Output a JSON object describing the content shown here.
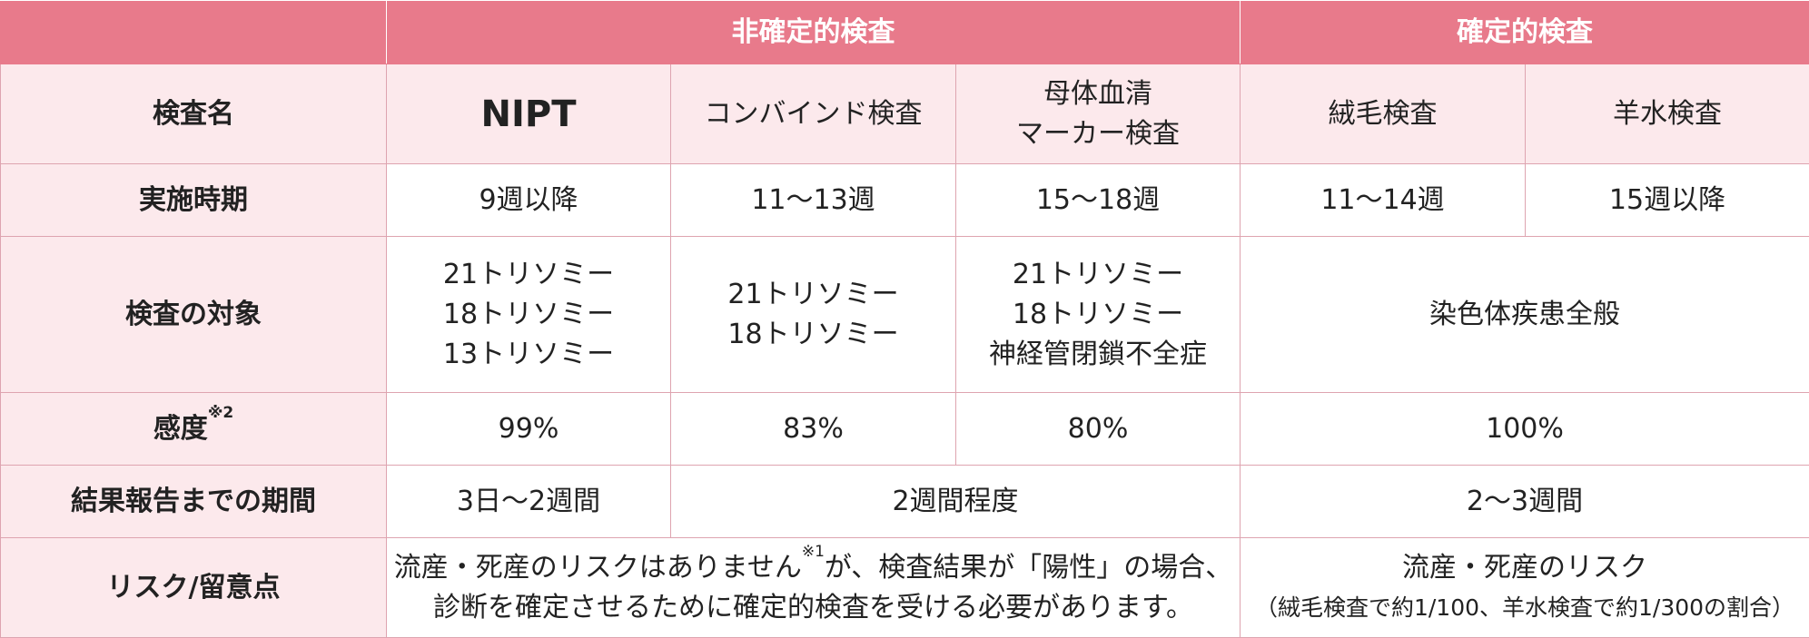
{
  "header": {
    "group_non_definitive": "非確定的検査",
    "group_definitive": "確定的検査"
  },
  "rows": {
    "test_name": {
      "label": "検査名",
      "nipt": "NIPT",
      "combined": "コンバインド検査",
      "serum_line1": "母体血清",
      "serum_line2": "マーカー検査",
      "cvs": "絨毛検査",
      "amnio": "羊水検査"
    },
    "timing": {
      "label": "実施時期",
      "nipt": "9週以降",
      "combined": "11～13週",
      "serum": "15～18週",
      "cvs": "11～14週",
      "amnio": "15週以降"
    },
    "target": {
      "label": "検査の対象",
      "nipt": [
        "21トリソミー",
        "18トリソミー",
        "13トリソミー"
      ],
      "combined": [
        "21トリソミー",
        "18トリソミー"
      ],
      "serum": [
        "21トリソミー",
        "18トリソミー",
        "神経管閉鎖不全症"
      ],
      "definitive": "染色体疾患全般"
    },
    "sensitivity": {
      "label": "感度",
      "label_note": "※2",
      "nipt": "99%",
      "combined": "83%",
      "serum": "80%",
      "definitive": "100%"
    },
    "report_period": {
      "label": "結果報告までの期間",
      "nipt": "3日～2週間",
      "combined_serum": "2週間程度",
      "definitive": "2～3週間"
    },
    "risk": {
      "label": "リスク/留意点",
      "non_definitive_part1": "流産・死産のリスクはありません",
      "non_definitive_note": "※1",
      "non_definitive_part2": "が、検査結果が「陽性」の場合、",
      "non_definitive_line2": "診断を確定させるために確定的検査を受ける必要があります。",
      "definitive_line1": "流産・死産のリスク",
      "definitive_line2": "（絨毛検査で約1/100、羊水検査で約1/300の割合）"
    }
  }
}
